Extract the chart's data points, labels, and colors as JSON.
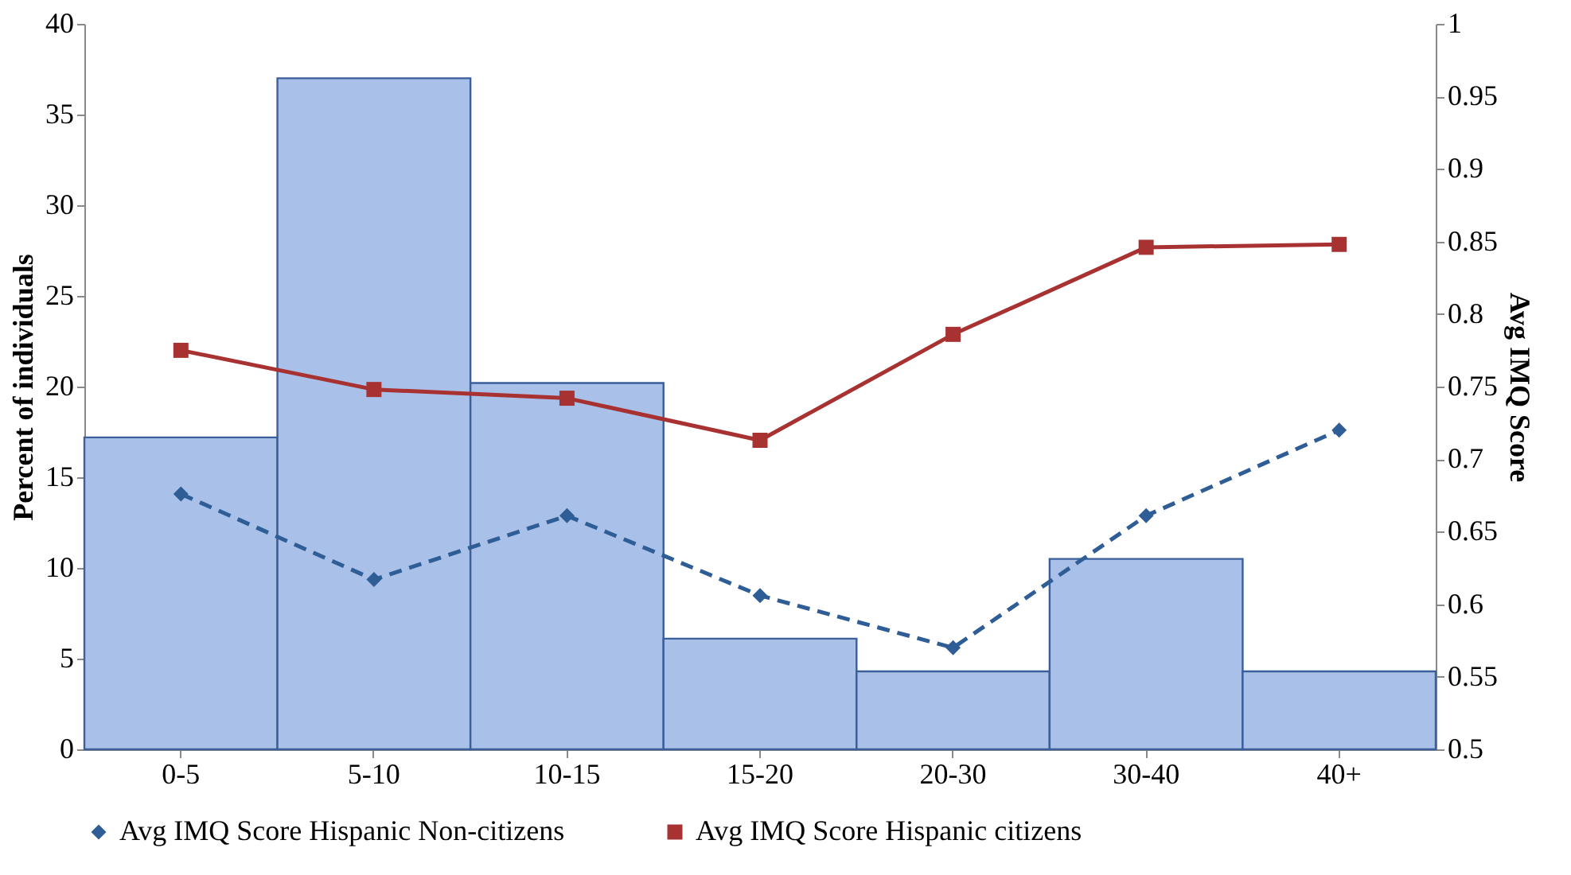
{
  "chart_data": {
    "type": "bar",
    "categories": [
      "0-5",
      "5-10",
      "10-15",
      "15-20",
      "20-30",
      "30-40",
      "40+"
    ],
    "ylabel": "Percent of individuals",
    "y2label": "Avg IMQ Score",
    "ylim": [
      0,
      40
    ],
    "yticks": [
      0,
      5,
      10,
      15,
      20,
      25,
      30,
      35,
      40
    ],
    "y2lim": [
      0.5,
      1
    ],
    "y2ticks": [
      0.5,
      0.55,
      0.6,
      0.65,
      0.7,
      0.75,
      0.8,
      0.85,
      0.9,
      0.95,
      1
    ],
    "legend": "bottom",
    "grid": false,
    "series": [
      {
        "color": "#a9c0e8",
        "values": [
          17.2,
          37.0,
          20.2,
          6.1,
          4.3,
          10.5,
          4.3
        ]
      },
      {
        "type": "line",
        "axis": "y2",
        "name": "Avg IMQ Score Hispanic Non-citizens",
        "color": "#2f5d96",
        "marker": "diamond",
        "line_style": "dashed",
        "values": [
          0.676,
          0.617,
          0.661,
          0.606,
          0.57,
          0.661,
          0.72
        ]
      },
      {
        "type": "line",
        "axis": "y2",
        "name": "Avg IMQ Score Hispanic citizens",
        "color": "#a83232",
        "marker": "square",
        "line_style": "solid",
        "values": [
          0.775,
          0.748,
          0.742,
          0.713,
          0.786,
          0.846,
          0.848
        ]
      }
    ]
  }
}
